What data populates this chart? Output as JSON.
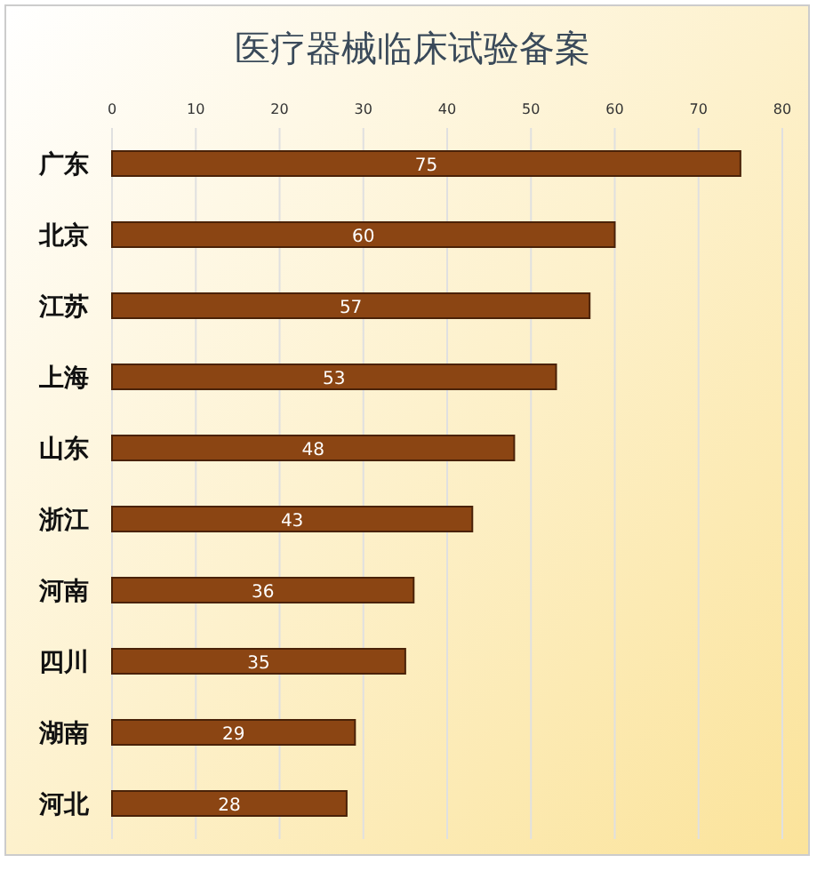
{
  "chart_data": {
    "type": "bar",
    "orientation": "horizontal",
    "title": "医疗器械临床试验备案",
    "categories": [
      "广东",
      "北京",
      "江苏",
      "上海",
      "山东",
      "浙江",
      "河南",
      "四川",
      "湖南",
      "河北"
    ],
    "values": [
      75,
      60,
      57,
      53,
      48,
      43,
      36,
      35,
      29,
      28
    ],
    "color": "#8b4513",
    "data_labels": true,
    "grid": "x",
    "xlim": [
      0,
      80
    ],
    "xticks": [
      0,
      10,
      20,
      30,
      40,
      50,
      60,
      70,
      80
    ]
  }
}
